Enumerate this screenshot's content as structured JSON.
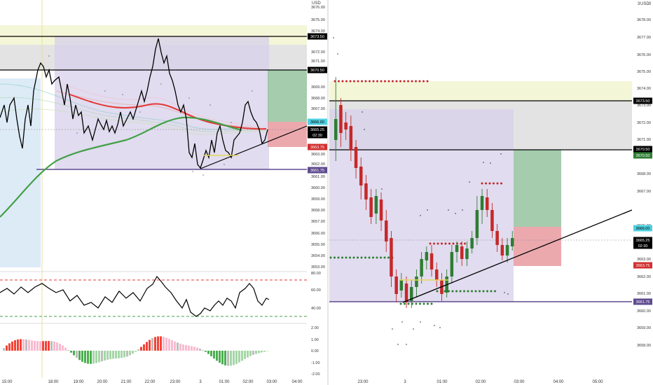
{
  "left_panel": {
    "currency": "USD",
    "price_ticks": [
      "3676.00",
      "3675.00",
      "3674.00",
      "3672.00",
      "3671.00",
      "3669.00",
      "3668.00",
      "3667.00",
      "3665.00",
      "3663.00",
      "3662.00",
      "3661.00",
      "3660.00",
      "3659.00",
      "3658.00",
      "3657.00",
      "3656.00",
      "3655.00",
      "3654.00",
      "3653.00"
    ],
    "price_tags": [
      {
        "label": "3673.50",
        "color": "#000000"
      },
      {
        "label": "3670.50",
        "color": "#000000"
      },
      {
        "label": "3666.00",
        "color": "#4dd0e1"
      },
      {
        "label": "3665.25",
        "color": "#000000"
      },
      {
        "label": "02:30",
        "color": "#000000"
      },
      {
        "label": "3663.75",
        "color": "#d32f2f"
      },
      {
        "label": "3661.75",
        "color": "#5e4a8e"
      }
    ],
    "rsi_ticks": [
      "80.00",
      "60.00",
      "40.00"
    ],
    "macd_ticks": [
      "2.00",
      "1.00",
      "0.00",
      "-1.00",
      "-2.00"
    ],
    "time_ticks": [
      "15:00",
      "18:00",
      "19:00",
      "20:00",
      "21:00",
      "22:00",
      "23:00",
      "3",
      "01:00",
      "02:00",
      "03:00",
      "04:00"
    ]
  },
  "right_panel": {
    "currency": "USD",
    "header_digits": "3",
    "header_zero": "0",
    "price_ticks": [
      "3678.00",
      "3677.00",
      "3676.00",
      "3675.00",
      "3674.00",
      "3673.00",
      "3672.00",
      "3671.00",
      "3669.00",
      "3668.00",
      "3667.00",
      "3665.00",
      "3664.00",
      "3663.00",
      "3662.00",
      "3661.00",
      "3660.00",
      "3659.00",
      "3658.00"
    ],
    "price_tags": [
      {
        "label": "3673.50",
        "color": "#000000"
      },
      {
        "label": "3670.50",
        "color": "#000000"
      },
      {
        "label": "3670.50",
        "color": "#2e7d32"
      },
      {
        "label": "3666.00",
        "color": "#4dd0e1"
      },
      {
        "label": "3665.25",
        "color": "#000000"
      },
      {
        "label": "02:30",
        "color": "#000000"
      },
      {
        "label": "3663.75",
        "color": "#d32f2f"
      },
      {
        "label": "3661.75",
        "color": "#5e4a8e"
      }
    ],
    "time_ticks": [
      "23:00",
      "3",
      "01:00",
      "02:00",
      "03:00",
      "04:00",
      "05:00"
    ]
  },
  "colors": {
    "up_candle": "#2e7d32",
    "down_candle": "#c62828",
    "trendline": "#000000",
    "support_line": "#5e4a8e",
    "rsi_upper": "#e53935",
    "rsi_lower": "#43a047",
    "macd_pos": "#f44336",
    "macd_neg": "#4caf50",
    "ema_green": "#43a047",
    "ema_red": "#e53935",
    "purple_zone": "#9575cd",
    "yellow_zone": "#f0f4c3",
    "blue_zone": "#bbdefb",
    "target_green": "#81c784",
    "stop_red": "#ef9a9a"
  }
}
